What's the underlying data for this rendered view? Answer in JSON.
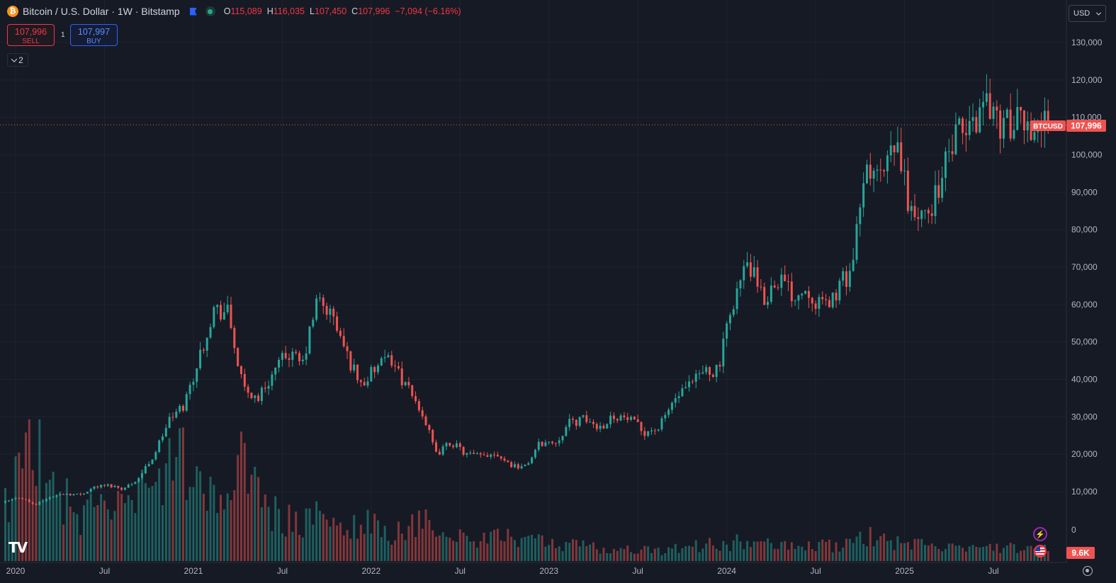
{
  "header": {
    "symbol_title": "Bitcoin / U.S. Dollar · 1W · Bitstamp",
    "ohlc": {
      "open_label": "O",
      "open": "115,089",
      "high_label": "H",
      "high": "116,035",
      "low_label": "L",
      "low": "107,450",
      "close_label": "C",
      "close": "107,996",
      "change": "−7,094 (−6.16%)"
    }
  },
  "trade": {
    "sell_price": "107,996",
    "sell_label": "SELL",
    "buy_price": "107,997",
    "buy_label": "BUY",
    "quantity": "1"
  },
  "indicators_toggle": {
    "count": "2"
  },
  "currency_select": {
    "value": "USD"
  },
  "price_line": {
    "symbol_tag": "BTCUSD",
    "price_tag": "107,996"
  },
  "volume_tag": "9.6K",
  "icons": [
    "bitcoin-icon",
    "flag-icon",
    "market-status-icon",
    "chevron-down-icon",
    "tradingview-logo",
    "bolt-icon",
    "us-flag-icon",
    "settings-icon"
  ],
  "colors": {
    "background": "#161a25",
    "up": "#26a69a",
    "down": "#ef5350",
    "grid": "#1f2330",
    "price_line": "#ef5350"
  },
  "chart_data": {
    "type": "candlestick",
    "title": "Bitcoin / U.S. Dollar · 1W · Bitstamp",
    "x_axis": {
      "tick_labels": [
        "2020",
        "Jul",
        "2021",
        "Jul",
        "2022",
        "Jul",
        "2023",
        "Jul",
        "2024",
        "Jul",
        "2025",
        "Jul"
      ]
    },
    "y_axis": {
      "range": [
        0,
        130000
      ],
      "tick_values": [
        10000,
        20000,
        30000,
        40000,
        50000,
        60000,
        70000,
        80000,
        90000,
        100000,
        110000,
        120000,
        130000
      ],
      "tick_labels": [
        "10,000",
        "20,000",
        "30,000",
        "40,000",
        "50,000",
        "60,000",
        "70,000",
        "80,000",
        "90,000",
        "100,000",
        "110,000",
        "120,000",
        "130,000"
      ],
      "volume_zero_label": "0"
    },
    "last_price": 107996,
    "series": [
      {
        "name": "BTCUSD",
        "x": [
          "2020-01",
          "2020-02",
          "2020-03",
          "2020-04",
          "2020-05",
          "2020-06",
          "2020-07",
          "2020-08",
          "2020-09",
          "2020-10",
          "2020-11",
          "2020-12",
          "2021-01",
          "2021-02",
          "2021-03",
          "2021-04",
          "2021-05",
          "2021-06",
          "2021-07",
          "2021-08",
          "2021-09",
          "2021-10",
          "2021-11",
          "2021-12",
          "2022-01",
          "2022-02",
          "2022-03",
          "2022-04",
          "2022-05",
          "2022-06",
          "2022-07",
          "2022-08",
          "2022-09",
          "2022-10",
          "2022-11",
          "2022-12",
          "2023-01",
          "2023-02",
          "2023-03",
          "2023-04",
          "2023-05",
          "2023-06",
          "2023-07",
          "2023-08",
          "2023-09",
          "2023-10",
          "2023-11",
          "2023-12",
          "2024-01",
          "2024-02",
          "2024-03",
          "2024-04",
          "2024-05",
          "2024-06",
          "2024-07",
          "2024-08",
          "2024-09",
          "2024-10",
          "2024-11",
          "2024-12",
          "2025-01",
          "2025-02",
          "2025-03",
          "2025-04",
          "2025-05",
          "2025-06",
          "2025-07",
          "2025-08",
          "2025-09"
        ],
        "close": [
          7200,
          8600,
          6400,
          8600,
          9500,
          9150,
          11300,
          11700,
          10800,
          13800,
          19700,
          29000,
          33000,
          45000,
          58800,
          57700,
          37300,
          35000,
          41500,
          47100,
          43800,
          61300,
          57000,
          46300,
          38500,
          43200,
          45500,
          37700,
          31800,
          19900,
          23300,
          20000,
          19400,
          20500,
          17200,
          16550,
          23100,
          23100,
          28500,
          29300,
          27200,
          30500,
          29200,
          26000,
          27000,
          34500,
          37700,
          42300,
          42600,
          61200,
          71300,
          60600,
          67500,
          62700,
          64600,
          59000,
          63300,
          70300,
          96400,
          93400,
          102400,
          84300,
          82500,
          94200,
          104600,
          107100,
          115700,
          108300,
          107996
        ],
        "volume_k": [
          48,
          70,
          110,
          60,
          50,
          35,
          42,
          50,
          38,
          52,
          58,
          70,
          80,
          60,
          45,
          55,
          95,
          50,
          40,
          32,
          30,
          35,
          28,
          25,
          32,
          28,
          22,
          25,
          30,
          32,
          20,
          18,
          16,
          18,
          25,
          15,
          18,
          12,
          14,
          12,
          10,
          9,
          10,
          9,
          8,
          10,
          11,
          13,
          14,
          15,
          18,
          14,
          12,
          11,
          12,
          13,
          12,
          14,
          20,
          18,
          14,
          15,
          12,
          11,
          10,
          9,
          11,
          12,
          9.6
        ]
      }
    ]
  }
}
